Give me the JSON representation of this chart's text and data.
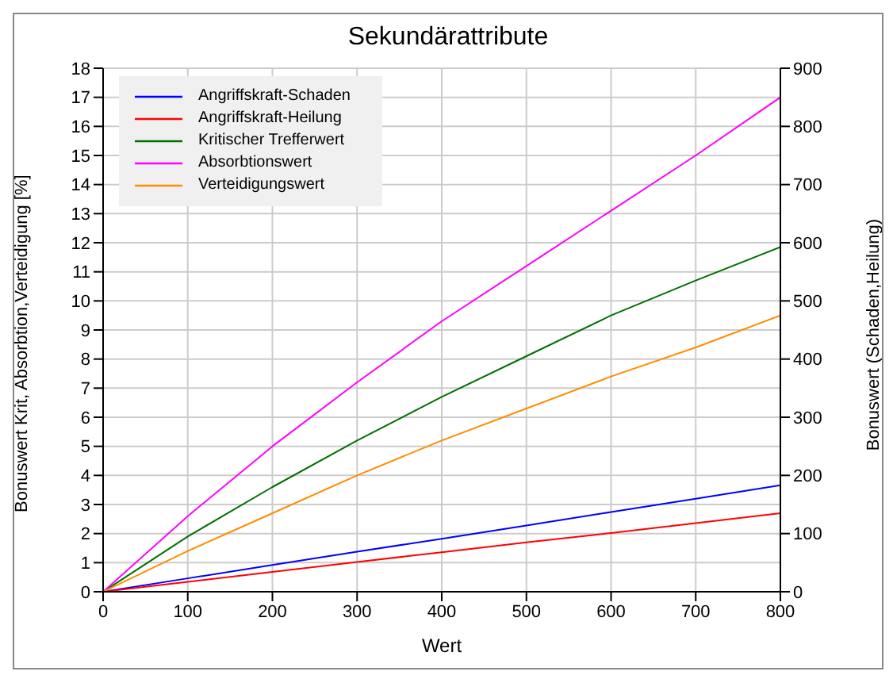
{
  "chart_data": {
    "type": "line",
    "title": "Sekundärattribute",
    "xlabel": "Wert",
    "ylabel": "Bonuswert Krit, Absorbtion,Verteidigung [%]",
    "y2label": "Bonuswert (Schaden,Heilung)",
    "x": [
      0,
      100,
      200,
      300,
      400,
      500,
      600,
      700,
      800
    ],
    "series": [
      {
        "name": "Angriffskraft-Schaden",
        "color": "#0000ff",
        "axis": "y2",
        "values": [
          0,
          23,
          46,
          69,
          91,
          114,
          137,
          160,
          183
        ]
      },
      {
        "name": "Angriffskraft-Heilung",
        "color": "#ff0000",
        "axis": "y2",
        "values": [
          0,
          17,
          34,
          51,
          68,
          85,
          101,
          118,
          135
        ]
      },
      {
        "name": "Kritischer Trefferwert",
        "color": "#007000",
        "values": [
          0,
          1.9,
          3.6,
          5.2,
          6.7,
          8.1,
          9.5,
          10.7,
          11.85
        ]
      },
      {
        "name": "Absorbtionswert",
        "color": "#ff00ff",
        "values": [
          0,
          2.6,
          5.0,
          7.2,
          9.3,
          11.2,
          13.1,
          15.0,
          17.0
        ]
      },
      {
        "name": "Verteidigungswert",
        "color": "#ff8c00",
        "values": [
          0,
          1.4,
          2.7,
          4.0,
          5.2,
          6.3,
          7.4,
          8.4,
          9.5
        ]
      }
    ],
    "xlim": [
      0,
      800
    ],
    "xticks": [
      0,
      100,
      200,
      300,
      400,
      500,
      600,
      700,
      800
    ],
    "ylim": [
      0,
      18
    ],
    "yticks": [
      0,
      1,
      2,
      3,
      4,
      5,
      6,
      7,
      8,
      9,
      10,
      11,
      12,
      13,
      14,
      15,
      16,
      17,
      18
    ],
    "y2lim": [
      0,
      900
    ],
    "y2ticks": [
      0,
      100,
      200,
      300,
      400,
      500,
      600,
      700,
      800,
      900
    ],
    "grid": true,
    "legend": "top left",
    "marker": "none",
    "line_style": "solid"
  }
}
